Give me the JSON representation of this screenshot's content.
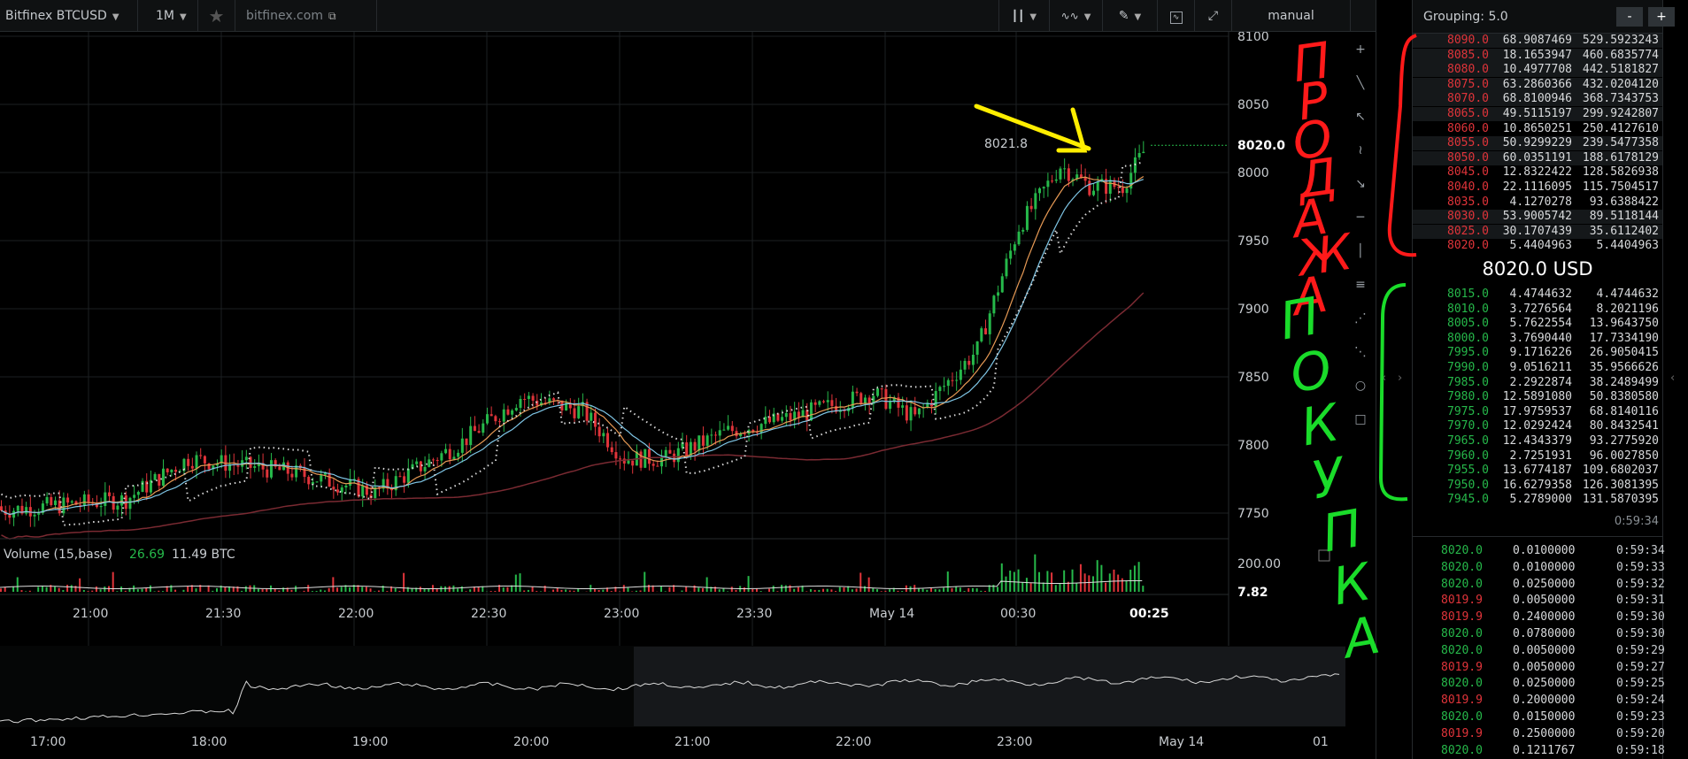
{
  "toolbar": {
    "symbol": "Bitfinex BTCUSD",
    "timeframe": "1M",
    "site": "bitfinex.com",
    "mode": "manual"
  },
  "chart": {
    "price_ticks": [
      "8100",
      "8050",
      "8000",
      "7950",
      "7900",
      "7850",
      "7800",
      "7750"
    ],
    "last_price": "8020.0",
    "high_label": "8021.8",
    "time_ticks": [
      "21:00",
      "21:30",
      "22:00",
      "22:30",
      "23:00",
      "23:30",
      "May 14",
      "00:30",
      "00:25"
    ],
    "volume_label": "Volume (15,base)",
    "volume_value1": "26.69",
    "volume_value2": "11.49 BTC",
    "volume_ticks": [
      "200.00",
      "7.82"
    ],
    "nav_ticks": [
      "17:00",
      "18:00",
      "19:00",
      "20:00",
      "21:00",
      "22:00",
      "23:00",
      "May 14",
      "01"
    ]
  },
  "orderbook": {
    "grouping": "Grouping: 5.0",
    "minus": "-",
    "plus": "+",
    "mid": "8020.0 USD",
    "time": "0:59:34",
    "asks": [
      [
        "8090.0",
        "68.9087469",
        "529.5923243"
      ],
      [
        "8085.0",
        "18.1653947",
        "460.6835774"
      ],
      [
        "8080.0",
        "10.4977708",
        "442.5181827"
      ],
      [
        "8075.0",
        "63.2860366",
        "432.0204120"
      ],
      [
        "8070.0",
        "68.8100946",
        "368.7343753"
      ],
      [
        "8065.0",
        "49.5115197",
        "299.9242807"
      ],
      [
        "8060.0",
        "10.8650251",
        "250.4127610"
      ],
      [
        "8055.0",
        "50.9299229",
        "239.5477358"
      ],
      [
        "8050.0",
        "60.0351191",
        "188.6178129"
      ],
      [
        "8045.0",
        "12.8322422",
        "128.5826938"
      ],
      [
        "8040.0",
        "22.1116095",
        "115.7504517"
      ],
      [
        "8035.0",
        "4.1270278",
        "93.6388422"
      ],
      [
        "8030.0",
        "53.9005742",
        "89.5118144"
      ],
      [
        "8025.0",
        "30.1707439",
        "35.6112402"
      ],
      [
        "8020.0",
        "5.4404963",
        "5.4404963"
      ]
    ],
    "bids": [
      [
        "8015.0",
        "4.4744632",
        "4.4744632"
      ],
      [
        "8010.0",
        "3.7276564",
        "8.2021196"
      ],
      [
        "8005.0",
        "5.7622554",
        "13.9643750"
      ],
      [
        "8000.0",
        "3.7690440",
        "17.7334190"
      ],
      [
        "7995.0",
        "9.1716226",
        "26.9050415"
      ],
      [
        "7990.0",
        "9.0516211",
        "35.9566626"
      ],
      [
        "7985.0",
        "2.2922874",
        "38.2489499"
      ],
      [
        "7980.0",
        "12.5891080",
        "50.8380580"
      ],
      [
        "7975.0",
        "17.9759537",
        "68.8140116"
      ],
      [
        "7970.0",
        "12.0292424",
        "80.8432541"
      ],
      [
        "7965.0",
        "12.4343379",
        "93.2775920"
      ],
      [
        "7960.0",
        "2.7251931",
        "96.0027850"
      ],
      [
        "7955.0",
        "13.6774187",
        "109.6802037"
      ],
      [
        "7950.0",
        "16.6279358",
        "126.3081395"
      ],
      [
        "7945.0",
        "5.2789000",
        "131.5870395"
      ]
    ]
  },
  "trades": [
    [
      "8020.0",
      "0.0100000",
      "0:59:34",
      "buy"
    ],
    [
      "8020.0",
      "0.0100000",
      "0:59:33",
      "buy"
    ],
    [
      "8020.0",
      "0.0250000",
      "0:59:32",
      "buy"
    ],
    [
      "8019.9",
      "0.0050000",
      "0:59:31",
      "sell"
    ],
    [
      "8019.9",
      "0.2400000",
      "0:59:30",
      "sell"
    ],
    [
      "8020.0",
      "0.0780000",
      "0:59:30",
      "buy"
    ],
    [
      "8020.0",
      "0.0050000",
      "0:59:29",
      "buy"
    ],
    [
      "8019.9",
      "0.0050000",
      "0:59:27",
      "sell"
    ],
    [
      "8020.0",
      "0.0250000",
      "0:59:25",
      "buy"
    ],
    [
      "8019.9",
      "0.2000000",
      "0:59:24",
      "sell"
    ],
    [
      "8020.0",
      "0.0150000",
      "0:59:23",
      "buy"
    ],
    [
      "8019.9",
      "0.2500000",
      "0:59:20",
      "sell"
    ],
    [
      "8020.0",
      "0.1211767",
      "0:59:18",
      "buy"
    ]
  ],
  "annotations": {
    "sell_word": "ПРОДАЖА",
    "buy_word": "ПОКУПКА"
  },
  "colors": {
    "up": "#26b84a",
    "down": "#e0343a",
    "annot_red": "#ff1a1a",
    "annot_green": "#1adc2a",
    "annot_yellow": "#ffee00"
  }
}
